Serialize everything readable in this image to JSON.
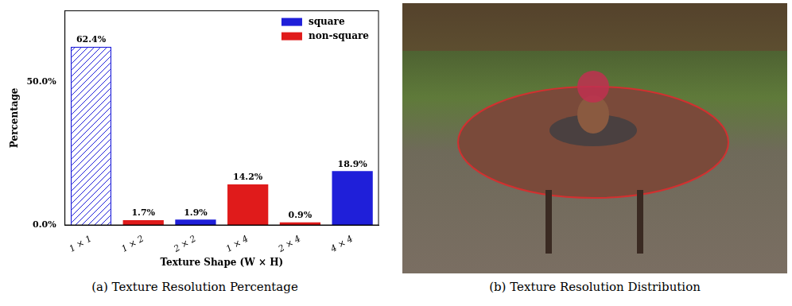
{
  "chart_data": {
    "type": "bar",
    "categories": [
      "1 × 1",
      "1 × 2",
      "2 × 2",
      "1 × 4",
      "2 × 4",
      "4 × 4"
    ],
    "series": [
      {
        "name": "square",
        "color": "#1f1fd9",
        "values": [
          62.4,
          null,
          1.9,
          null,
          null,
          18.9
        ],
        "value_labels": [
          "62.4%",
          null,
          "1.9%",
          null,
          null,
          "18.9%"
        ]
      },
      {
        "name": "non-square",
        "color": "#e01b1b",
        "values": [
          null,
          1.7,
          null,
          14.2,
          0.9,
          null
        ],
        "value_labels": [
          null,
          "1.7%",
          null,
          "14.2%",
          "0.9%",
          null
        ]
      }
    ],
    "ylabel": "Percentage",
    "xlabel": "Texture Shape (W × H)",
    "ylim": [
      0,
      75
    ],
    "yticks": [
      {
        "value": 0,
        "label": "0.0%"
      },
      {
        "value": 50,
        "label": "50.0%"
      }
    ],
    "legend": "upper right",
    "data_labels": true,
    "grid": false
  },
  "captions": [
    "(a) Texture Resolution Percentage",
    "(b) Texture Resolution Distribution"
  ]
}
